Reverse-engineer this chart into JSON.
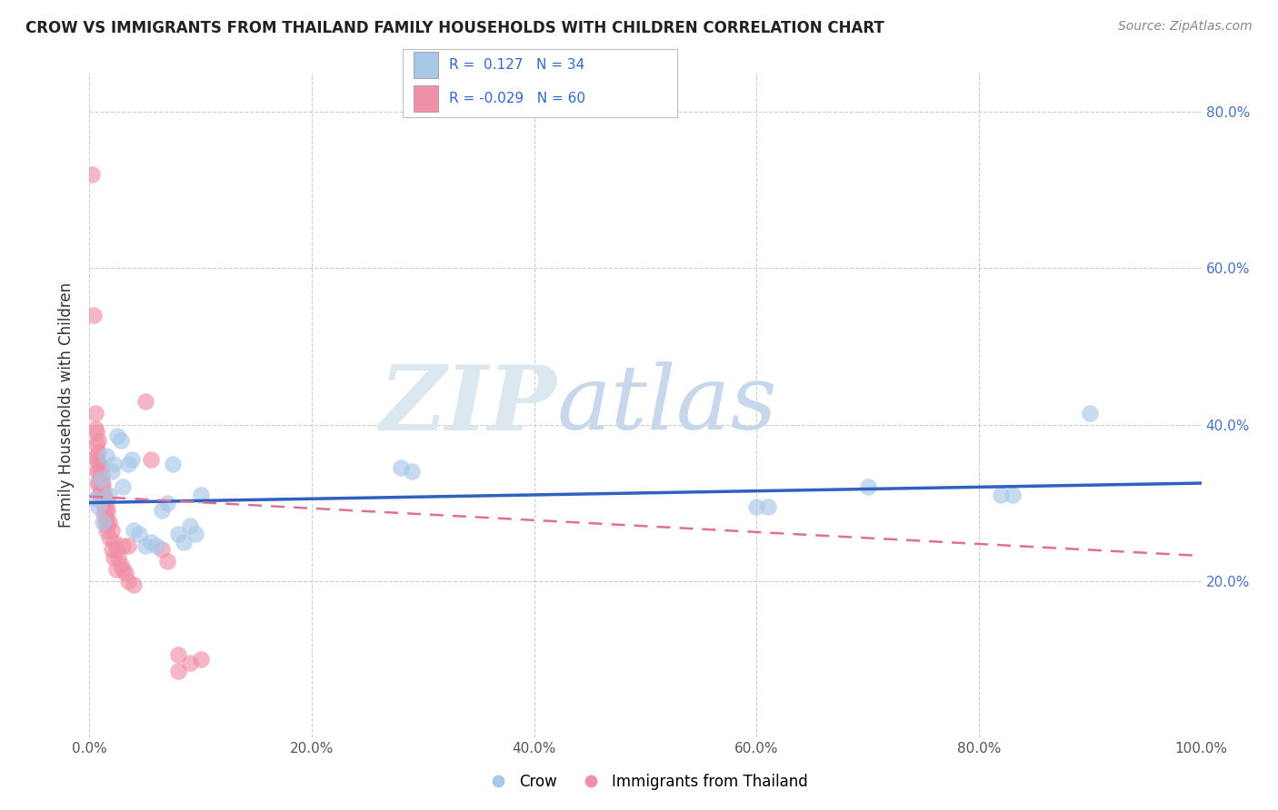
{
  "title": "CROW VS IMMIGRANTS FROM THAILAND FAMILY HOUSEHOLDS WITH CHILDREN CORRELATION CHART",
  "source": "Source: ZipAtlas.com",
  "ylabel": "Family Households with Children",
  "crow_R": 0.127,
  "crow_N": 34,
  "thai_R": -0.029,
  "thai_N": 60,
  "crow_scatter": [
    [
      0.005,
      0.305
    ],
    [
      0.008,
      0.295
    ],
    [
      0.01,
      0.33
    ],
    [
      0.012,
      0.275
    ],
    [
      0.015,
      0.36
    ],
    [
      0.018,
      0.31
    ],
    [
      0.02,
      0.34
    ],
    [
      0.022,
      0.35
    ],
    [
      0.025,
      0.385
    ],
    [
      0.028,
      0.38
    ],
    [
      0.03,
      0.32
    ],
    [
      0.035,
      0.35
    ],
    [
      0.038,
      0.355
    ],
    [
      0.04,
      0.265
    ],
    [
      0.045,
      0.26
    ],
    [
      0.05,
      0.245
    ],
    [
      0.055,
      0.25
    ],
    [
      0.06,
      0.245
    ],
    [
      0.065,
      0.29
    ],
    [
      0.07,
      0.3
    ],
    [
      0.075,
      0.35
    ],
    [
      0.08,
      0.26
    ],
    [
      0.085,
      0.25
    ],
    [
      0.09,
      0.27
    ],
    [
      0.095,
      0.26
    ],
    [
      0.1,
      0.31
    ],
    [
      0.28,
      0.345
    ],
    [
      0.29,
      0.34
    ],
    [
      0.6,
      0.295
    ],
    [
      0.61,
      0.295
    ],
    [
      0.7,
      0.32
    ],
    [
      0.82,
      0.31
    ],
    [
      0.83,
      0.31
    ],
    [
      0.9,
      0.415
    ]
  ],
  "thailand_scatter": [
    [
      0.002,
      0.72
    ],
    [
      0.004,
      0.54
    ],
    [
      0.005,
      0.415
    ],
    [
      0.005,
      0.395
    ],
    [
      0.006,
      0.39
    ],
    [
      0.006,
      0.375
    ],
    [
      0.006,
      0.36
    ],
    [
      0.007,
      0.355
    ],
    [
      0.007,
      0.34
    ],
    [
      0.007,
      0.325
    ],
    [
      0.008,
      0.38
    ],
    [
      0.008,
      0.365
    ],
    [
      0.008,
      0.35
    ],
    [
      0.009,
      0.34
    ],
    [
      0.009,
      0.325
    ],
    [
      0.009,
      0.31
    ],
    [
      0.01,
      0.345
    ],
    [
      0.01,
      0.33
    ],
    [
      0.01,
      0.315
    ],
    [
      0.011,
      0.335
    ],
    [
      0.011,
      0.32
    ],
    [
      0.011,
      0.305
    ],
    [
      0.012,
      0.325
    ],
    [
      0.012,
      0.31
    ],
    [
      0.012,
      0.3
    ],
    [
      0.013,
      0.315
    ],
    [
      0.013,
      0.3
    ],
    [
      0.013,
      0.285
    ],
    [
      0.014,
      0.305
    ],
    [
      0.014,
      0.29
    ],
    [
      0.014,
      0.275
    ],
    [
      0.015,
      0.3
    ],
    [
      0.015,
      0.28
    ],
    [
      0.015,
      0.265
    ],
    [
      0.016,
      0.29
    ],
    [
      0.016,
      0.27
    ],
    [
      0.018,
      0.275
    ],
    [
      0.018,
      0.255
    ],
    [
      0.02,
      0.265
    ],
    [
      0.02,
      0.24
    ],
    [
      0.022,
      0.25
    ],
    [
      0.022,
      0.23
    ],
    [
      0.024,
      0.24
    ],
    [
      0.024,
      0.215
    ],
    [
      0.026,
      0.23
    ],
    [
      0.028,
      0.22
    ],
    [
      0.03,
      0.245
    ],
    [
      0.03,
      0.215
    ],
    [
      0.032,
      0.21
    ],
    [
      0.035,
      0.2
    ],
    [
      0.035,
      0.245
    ],
    [
      0.04,
      0.195
    ],
    [
      0.05,
      0.43
    ],
    [
      0.055,
      0.355
    ],
    [
      0.065,
      0.24
    ],
    [
      0.07,
      0.225
    ],
    [
      0.08,
      0.105
    ],
    [
      0.08,
      0.085
    ],
    [
      0.09,
      0.095
    ],
    [
      0.1,
      0.1
    ]
  ],
  "crow_color": "#a8c8e8",
  "thailand_color": "#f090a8",
  "crow_line_color": "#3060c0",
  "thailand_line_color": "#e07090",
  "background_color": "#ffffff",
  "grid_color": "#cccccc",
  "xlim": [
    0.0,
    1.0
  ],
  "ylim": [
    0.0,
    0.85
  ],
  "xtick_vals": [
    0.0,
    0.2,
    0.4,
    0.6,
    0.8,
    1.0
  ],
  "ytick_vals": [
    0.0,
    0.2,
    0.4,
    0.6,
    0.8
  ],
  "right_ytick_vals": [
    0.2,
    0.4,
    0.6,
    0.8
  ]
}
